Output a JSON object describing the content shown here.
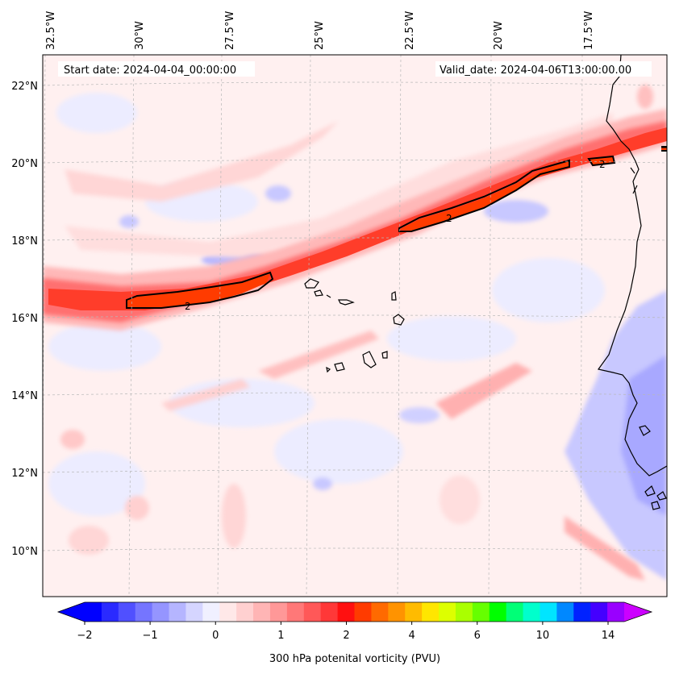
{
  "header": {
    "start_date": "Start date: 2024-04-04_00:00:00",
    "valid_date": "Valid_date: 2024-04-06T13:00:00.00"
  },
  "map": {
    "lon_labels": [
      "32.5°W",
      "30°W",
      "27.5°W",
      "25°W",
      "22.5°W",
      "20°W",
      "17.5°W"
    ],
    "lat_labels": [
      "22°N",
      "20°N",
      "18°N",
      "16°N",
      "14°N",
      "12°N",
      "10°N"
    ],
    "contour_level_label": "2",
    "colors": {
      "strong_red": "#ff3b1a",
      "red": "#ff4040",
      "light_red": "#ffb0b0",
      "pale_red": "#ffe6e6",
      "pale_blue": "#ececff",
      "light_blue": "#c8c8ff",
      "blue": "#9c9cff"
    }
  },
  "colorbar": {
    "title": "300 hPa potenital vorticity (PVU)",
    "ticks": [
      "−2",
      "−1",
      "0",
      "1",
      "2",
      "4",
      "6",
      "10",
      "14"
    ],
    "swatches": [
      "#0000ff",
      "#2a2aff",
      "#5050ff",
      "#7575ff",
      "#9595ff",
      "#b5b5ff",
      "#d5d5ff",
      "#f0f0ff",
      "#ffe8e8",
      "#ffd0d0",
      "#ffb5b5",
      "#ff9898",
      "#ff7878",
      "#ff5858",
      "#ff3838",
      "#ff1010",
      "#ff3b00",
      "#ff6a00",
      "#ff9300",
      "#ffbb00",
      "#ffe600",
      "#ddff00",
      "#aaff00",
      "#66ff00",
      "#00ff00",
      "#00ff77",
      "#00ffcc",
      "#00e5ff",
      "#0088ff",
      "#0022ff",
      "#4400ff",
      "#9900ff"
    ],
    "min_color": "#0000ff",
    "max_color": "#cc00ff"
  }
}
